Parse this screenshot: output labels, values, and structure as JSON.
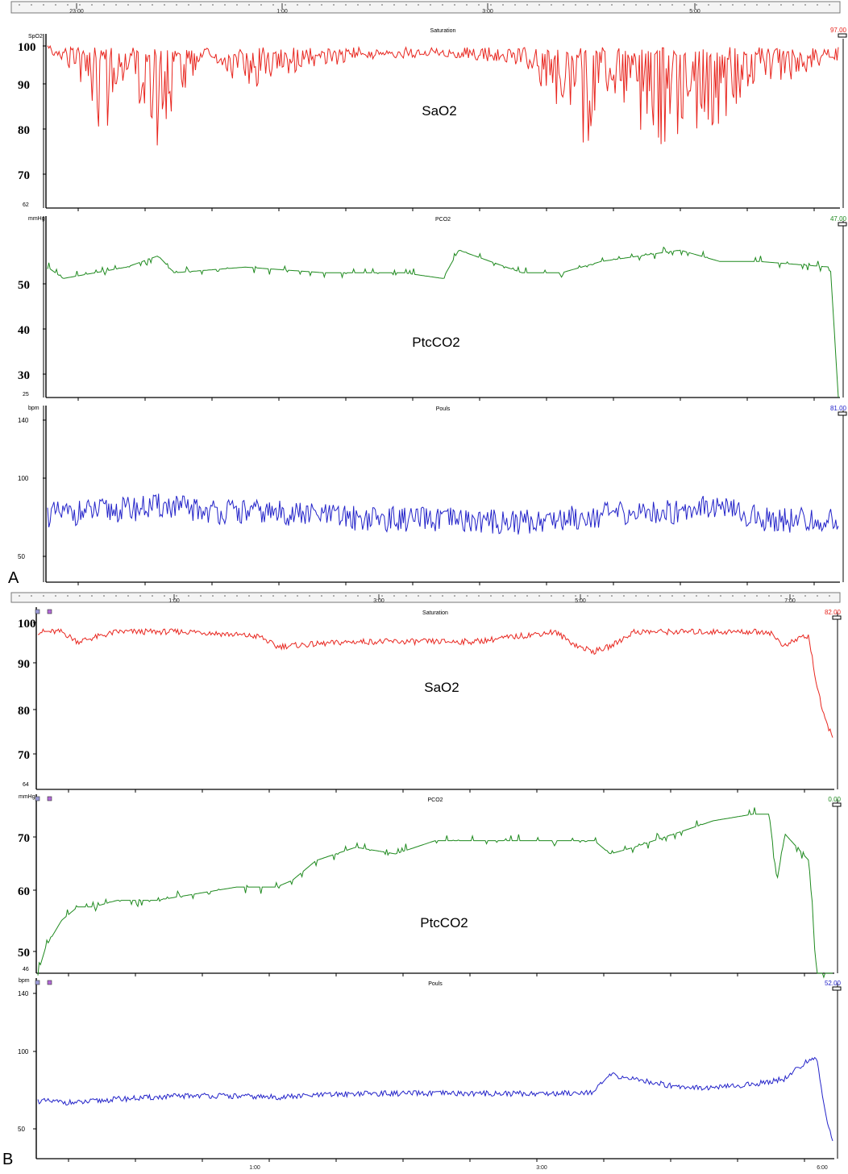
{
  "figure_labels": {
    "a": "A",
    "b": "B"
  },
  "colors": {
    "saturation": "#e8261f",
    "pco2": "#1f8a1f",
    "pouls": "#2323c9",
    "value_saturation": "#e8261f",
    "value_pco2": "#1f8a1f",
    "value_pouls": "#2323c9"
  },
  "chart_data": [
    {
      "id": "A",
      "type": "line",
      "timeline": {
        "ticks": [
          "23:00",
          "1:00",
          "3:00",
          "5:00"
        ]
      },
      "panels": [
        {
          "key": "sat",
          "unit": "SpO2",
          "title": "Saturation",
          "annotation": "SaO2",
          "value": "97.00",
          "ylim": [
            62,
            101
          ],
          "ticks": [
            "100",
            "90",
            "80",
            "70"
          ],
          "min_label": "62",
          "series": [
            {
              "x": [
                0,
                0.06,
                0.07,
                0.1,
                0.14,
                0.2,
                0.25,
                0.3,
                0.4,
                0.5,
                0.6,
                0.64,
                0.68,
                0.72,
                0.78,
                0.8,
                0.85,
                0.9,
                0.95,
                0.99
              ],
              "values": [
                98,
                82,
                76,
                93,
                74,
                97,
                88,
                92,
                95,
                96,
                94,
                86,
                73,
                88,
                70,
                80,
                78,
                88,
                91,
                95
              ]
            }
          ]
        },
        {
          "key": "pco2",
          "unit": "mmHg",
          "title": "PCO2",
          "annotation": "PtcCO2",
          "value": "47.00",
          "ylim": [
            25,
            57
          ],
          "ticks": [
            "50",
            "40",
            "30"
          ],
          "min_label": "25",
          "series": [
            {
              "x": [
                0,
                0.02,
                0.1,
                0.14,
                0.16,
                0.25,
                0.35,
                0.45,
                0.5,
                0.52,
                0.6,
                0.65,
                0.7,
                0.75,
                0.8,
                0.85,
                0.9,
                0.99,
                1.0
              ],
              "values": [
                48,
                46,
                48,
                50,
                47,
                48,
                47,
                47,
                46,
                51,
                47,
                47,
                49,
                50,
                51,
                49,
                49,
                48,
                25
              ]
            }
          ]
        },
        {
          "key": "pouls",
          "unit": "bpm",
          "title": "Pouls",
          "value": "81.00",
          "ylim": [
            45,
            142
          ],
          "ticks": [
            "140",
            "100",
            "50"
          ],
          "series": [
            {
              "x": [
                0,
                0.1,
                0.15,
                0.2,
                0.3,
                0.4,
                0.5,
                0.6,
                0.7,
                0.8,
                0.83,
                0.9,
                1.0
              ],
              "values": [
                82,
                85,
                87,
                84,
                83,
                80,
                79,
                78,
                82,
                84,
                88,
                80,
                78
              ]
            }
          ]
        }
      ]
    },
    {
      "id": "B",
      "type": "line",
      "timeline": {
        "ticks": [
          "1:00",
          "3:00",
          "5:00",
          "7:00"
        ]
      },
      "bottom_ticks": [
        "1:00",
        "3:00",
        "6:00"
      ],
      "panels": [
        {
          "key": "sat",
          "title": "Saturation",
          "annotation": "SaO2",
          "value": "82.00",
          "ylim": [
            64,
            101
          ],
          "ticks": [
            "100",
            "90",
            "80",
            "70"
          ],
          "min_label": "64",
          "series": [
            {
              "x": [
                0,
                0.03,
                0.05,
                0.1,
                0.2,
                0.28,
                0.3,
                0.4,
                0.5,
                0.55,
                0.6,
                0.65,
                0.68,
                0.7,
                0.72,
                0.75,
                0.8,
                0.85,
                0.9,
                0.92,
                0.94,
                0.96,
                0.97,
                0.98,
                0.99,
                1.0
              ],
              "values": [
                96,
                96,
                94,
                96,
                96,
                95,
                93,
                94,
                94,
                94,
                95,
                96,
                93,
                92,
                93,
                96,
                96,
                96,
                96,
                96,
                93,
                95,
                95,
                85,
                78,
                75
              ]
            }
          ]
        },
        {
          "key": "pco2",
          "unit": "mmHg",
          "title": "PCO2",
          "annotation": "PtcCO2",
          "value": "0.00",
          "ylim": [
            46,
            73
          ],
          "ticks": [
            "70",
            "60",
            "50"
          ],
          "min_label": "46",
          "series": [
            {
              "x": [
                0,
                0.01,
                0.03,
                0.05,
                0.07,
                0.1,
                0.15,
                0.2,
                0.25,
                0.3,
                0.32,
                0.35,
                0.4,
                0.45,
                0.5,
                0.55,
                0.6,
                0.65,
                0.7,
                0.72,
                0.75,
                0.8,
                0.85,
                0.9,
                0.92,
                0.93,
                0.94,
                0.97,
                0.98,
                1.0
              ],
              "values": [
                46,
                50,
                54,
                56,
                56,
                57,
                57,
                58,
                59,
                59,
                60,
                63,
                65,
                64,
                66,
                66,
                66,
                66,
                66,
                64,
                65,
                67,
                69,
                70,
                70,
                60,
                67,
                63,
                46,
                46
              ]
            }
          ]
        },
        {
          "key": "pouls",
          "unit": "bpm",
          "title": "Pouls",
          "value": "52.00",
          "ylim": [
            45,
            142
          ],
          "ticks": [
            "140",
            "100",
            "50"
          ],
          "series": [
            {
              "x": [
                0,
                0.05,
                0.1,
                0.2,
                0.3,
                0.4,
                0.5,
                0.6,
                0.65,
                0.7,
                0.72,
                0.8,
                0.85,
                0.9,
                0.94,
                0.97,
                0.98,
                0.99,
                1.0
              ],
              "values": [
                76,
                75,
                77,
                79,
                78,
                80,
                80,
                80,
                80,
                81,
                90,
                84,
                83,
                85,
                88,
                98,
                100,
                70,
                55
              ]
            }
          ]
        }
      ]
    }
  ]
}
